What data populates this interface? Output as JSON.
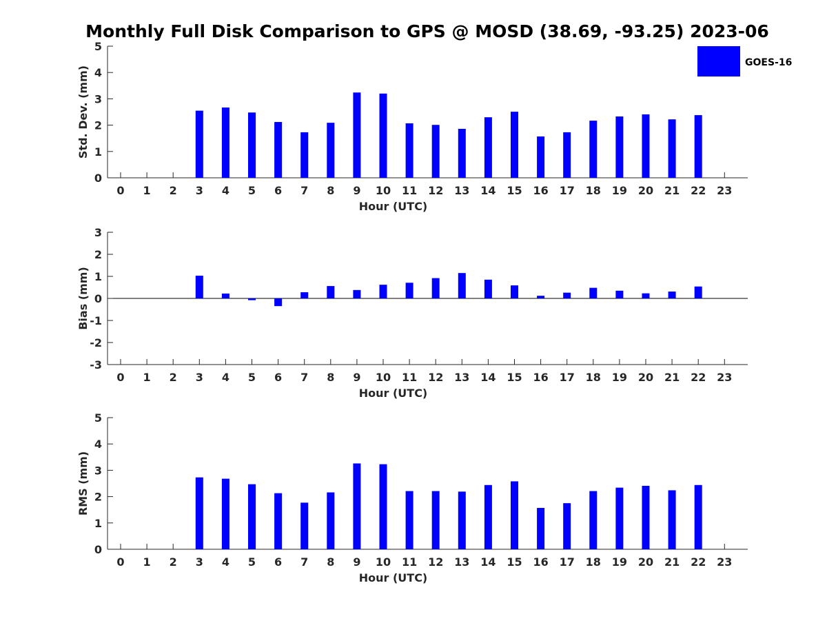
{
  "title": "Monthly Full Disk Comparison to GPS @ MOSD (38.69, -93.25) 2023-06",
  "legend": {
    "label": "GOES-16",
    "color": "#0000ff",
    "placement": "top-right"
  },
  "chart_data": [
    {
      "type": "bar",
      "xlabel": "Hour (UTC)",
      "ylabel": "Std. Dev. (mm)",
      "ylim": [
        0,
        5
      ],
      "yticks": [
        "0",
        "1",
        "2",
        "3",
        "4",
        "5"
      ],
      "categories": [
        "0",
        "1",
        "2",
        "3",
        "4",
        "5",
        "6",
        "7",
        "8",
        "9",
        "10",
        "11",
        "12",
        "13",
        "14",
        "15",
        "16",
        "17",
        "18",
        "19",
        "20",
        "21",
        "22",
        "23"
      ],
      "series": [
        {
          "name": "GOES-16",
          "values": [
            null,
            null,
            null,
            2.55,
            2.67,
            2.48,
            2.12,
            1.73,
            2.09,
            3.24,
            3.2,
            2.07,
            2.01,
            1.86,
            2.3,
            2.51,
            1.57,
            1.73,
            2.17,
            2.33,
            2.41,
            2.22,
            2.38,
            null
          ]
        }
      ]
    },
    {
      "type": "bar",
      "xlabel": "Hour (UTC)",
      "ylabel": "Bias (mm)",
      "ylim": [
        -3,
        3
      ],
      "yticks": [
        "-3",
        "-2",
        "-1",
        "0",
        "1",
        "2",
        "3"
      ],
      "categories": [
        "0",
        "1",
        "2",
        "3",
        "4",
        "5",
        "6",
        "7",
        "8",
        "9",
        "10",
        "11",
        "12",
        "13",
        "14",
        "15",
        "16",
        "17",
        "18",
        "19",
        "20",
        "21",
        "22",
        "23"
      ],
      "series": [
        {
          "name": "GOES-16",
          "values": [
            null,
            null,
            null,
            1.03,
            0.22,
            -0.08,
            -0.35,
            0.28,
            0.56,
            0.38,
            0.62,
            0.71,
            0.92,
            1.15,
            0.85,
            0.59,
            0.12,
            0.26,
            0.48,
            0.35,
            0.23,
            0.31,
            0.54,
            null
          ]
        }
      ]
    },
    {
      "type": "bar",
      "xlabel": "Hour (UTC)",
      "ylabel": "RMS (mm)",
      "ylim": [
        0,
        5
      ],
      "yticks": [
        "0",
        "1",
        "2",
        "3",
        "4",
        "5"
      ],
      "categories": [
        "0",
        "1",
        "2",
        "3",
        "4",
        "5",
        "6",
        "7",
        "8",
        "9",
        "10",
        "11",
        "12",
        "13",
        "14",
        "15",
        "16",
        "17",
        "18",
        "19",
        "20",
        "21",
        "22",
        "23"
      ],
      "series": [
        {
          "name": "GOES-16",
          "values": [
            null,
            null,
            null,
            2.73,
            2.68,
            2.47,
            2.13,
            1.77,
            2.16,
            3.26,
            3.23,
            2.21,
            2.21,
            2.19,
            2.44,
            2.58,
            1.57,
            1.75,
            2.21,
            2.34,
            2.41,
            2.24,
            2.44,
            null
          ]
        }
      ]
    }
  ]
}
